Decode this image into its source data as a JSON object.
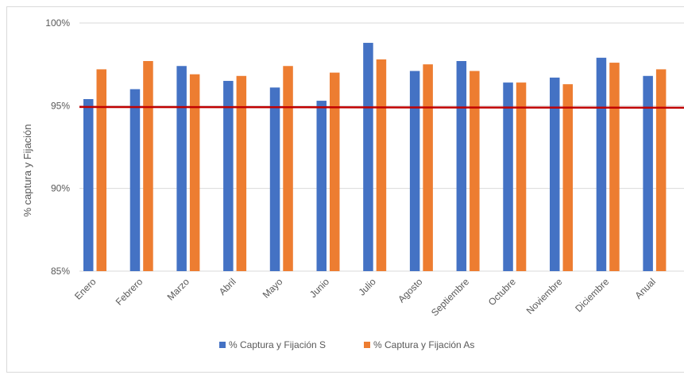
{
  "chart_data": {
    "type": "bar",
    "ylabel": "% captura y Fijación",
    "xlabel": "",
    "ylim": [
      85,
      100
    ],
    "y_ticks": [
      85,
      90,
      95,
      100
    ],
    "y_tick_labels": [
      "85%",
      "90%",
      "95%",
      "100%"
    ],
    "categories": [
      "Enero",
      "Febrero",
      "Marzo",
      "Abril",
      "Mayo",
      "Junio",
      "Julio",
      "Agosto",
      "Septiembre",
      "Octubre",
      "Noviembre",
      "Diciembre",
      "Anual"
    ],
    "series": [
      {
        "name": "% Captura y Fijación S",
        "color": "#4472c4",
        "values": [
          95.4,
          96.0,
          97.4,
          96.5,
          96.1,
          95.3,
          98.8,
          97.1,
          97.7,
          96.4,
          96.7,
          97.9,
          96.8
        ]
      },
      {
        "name": "% Captura y Fijación As",
        "color": "#ed7d31",
        "values": [
          97.2,
          97.7,
          96.9,
          96.8,
          97.4,
          97.0,
          97.8,
          97.5,
          97.1,
          96.4,
          96.3,
          97.6,
          97.2
        ]
      }
    ],
    "reference_line": {
      "value": 94.9,
      "color": "#c00000"
    },
    "grid": true,
    "gridline_color": "#d9d9d9",
    "legend_position": "bottom"
  }
}
